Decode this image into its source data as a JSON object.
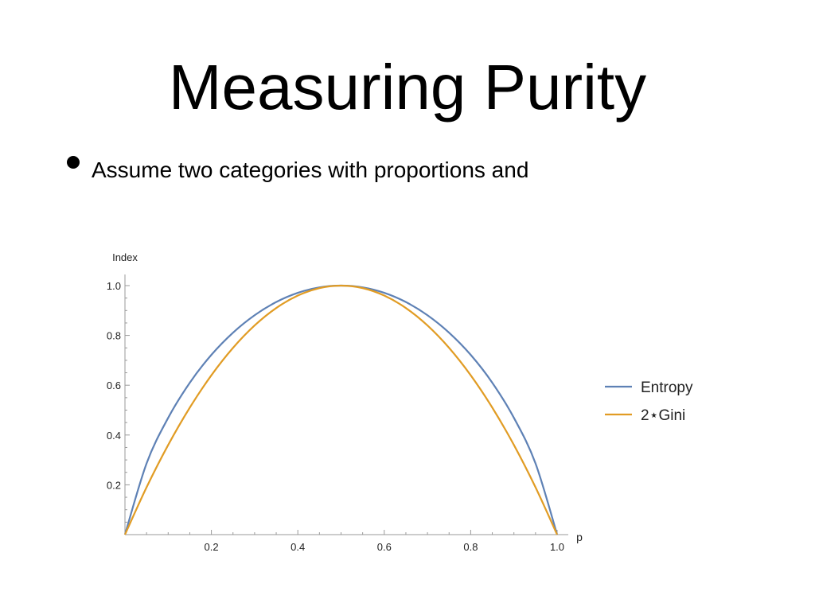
{
  "slide": {
    "title": "Measuring Purity",
    "bullet": "Assume two categories with proportions  and"
  },
  "chart_data": {
    "type": "line",
    "title": "",
    "xlabel": "p",
    "ylabel": "Index",
    "xlim": [
      0,
      1
    ],
    "ylim": [
      0,
      1
    ],
    "x_ticks": [
      0.2,
      0.4,
      0.6,
      0.8,
      1.0
    ],
    "x_tick_labels": [
      "0.2",
      "0.4",
      "0.6",
      "0.8",
      "1.0"
    ],
    "y_ticks": [
      0.2,
      0.4,
      0.6,
      0.8,
      1.0
    ],
    "y_tick_labels": [
      "0.2",
      "0.4",
      "0.6",
      "0.8",
      "1.0"
    ],
    "grid": false,
    "legend_position": "right",
    "x": [
      0,
      0.05,
      0.1,
      0.15,
      0.2,
      0.25,
      0.3,
      0.35,
      0.4,
      0.45,
      0.5,
      0.55,
      0.6,
      0.65,
      0.7,
      0.75,
      0.8,
      0.85,
      0.9,
      0.95,
      1.0
    ],
    "series": [
      {
        "name": "Entropy",
        "color": "#5e81b5",
        "values": [
          0,
          0.286,
          0.469,
          0.61,
          0.722,
          0.811,
          0.881,
          0.934,
          0.971,
          0.993,
          1.0,
          0.993,
          0.971,
          0.934,
          0.881,
          0.811,
          0.722,
          0.61,
          0.469,
          0.286,
          0
        ]
      },
      {
        "name": "2⋆Gini",
        "color": "#e19c24",
        "values": [
          0,
          0.19,
          0.36,
          0.51,
          0.64,
          0.75,
          0.84,
          0.91,
          0.96,
          0.99,
          1.0,
          0.99,
          0.96,
          0.91,
          0.84,
          0.75,
          0.64,
          0.51,
          0.36,
          0.19,
          0
        ]
      }
    ]
  }
}
